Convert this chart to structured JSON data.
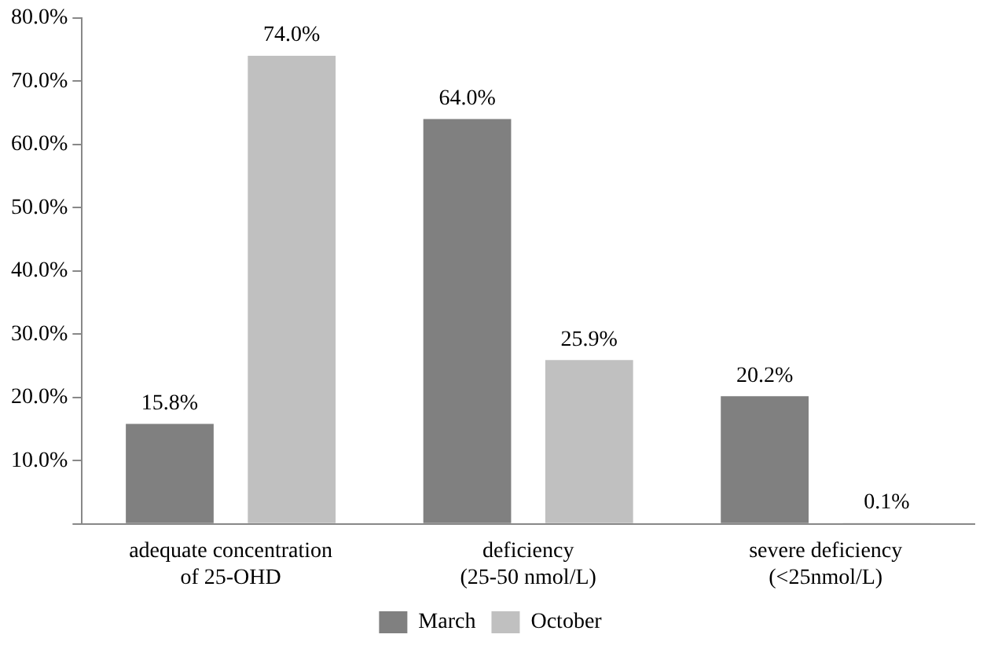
{
  "chart_data": {
    "type": "bar",
    "categories": [
      "adequate concentration\nof 25-OHD",
      "deficiency\n(25-50 nmol/L)",
      "severe deficiency\n(<25nmol/L)"
    ],
    "series": [
      {
        "name": "March",
        "color": "#808080",
        "values": [
          15.8,
          64.0,
          20.2
        ],
        "value_labels": [
          "15.8%",
          "64.0%",
          "20.2%"
        ]
      },
      {
        "name": "October",
        "color": "#c0c0c0",
        "values": [
          74.0,
          25.9,
          0.1
        ],
        "value_labels": [
          "74.0%",
          "25.9%",
          "0.1%"
        ]
      }
    ],
    "ylim": [
      0,
      80
    ],
    "yticks": [
      {
        "value": 0,
        "label": null
      },
      {
        "value": 10,
        "label": "10.0%"
      },
      {
        "value": 20,
        "label": "20.0%"
      },
      {
        "value": 30,
        "label": "30.0%"
      },
      {
        "value": 40,
        "label": "40.0%"
      },
      {
        "value": 50,
        "label": "50.0%"
      },
      {
        "value": 60,
        "label": "60.0%"
      },
      {
        "value": 70,
        "label": "70.0%"
      },
      {
        "value": 80,
        "label": "80.0%"
      }
    ],
    "grid": false,
    "legend": "bottom"
  }
}
